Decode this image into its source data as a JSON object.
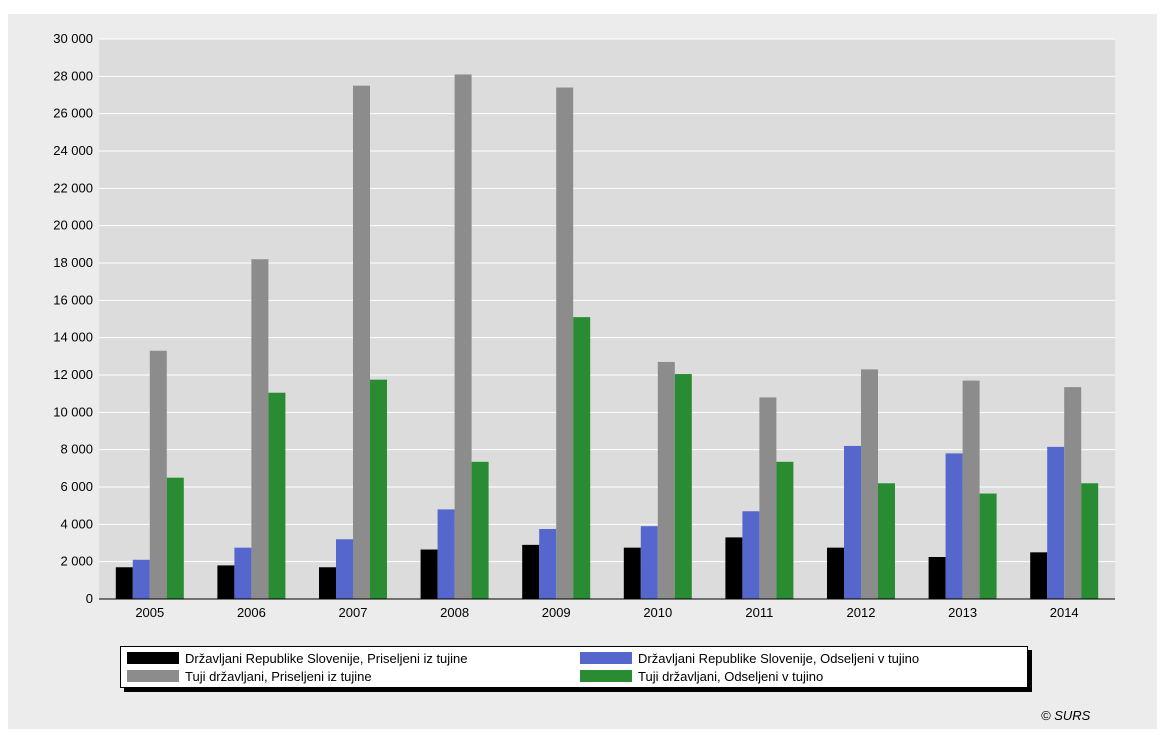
{
  "chart_data": {
    "type": "bar",
    "categories": [
      "2005",
      "2006",
      "2007",
      "2008",
      "2009",
      "2010",
      "2011",
      "2012",
      "2013",
      "2014"
    ],
    "series": [
      {
        "name": "Državljani Republike Slovenije, Priseljeni iz tujine",
        "color": "#000000",
        "values": [
          1700,
          1800,
          1700,
          2650,
          2900,
          2750,
          3300,
          2750,
          2250,
          2500
        ]
      },
      {
        "name": "Državljani Republike Slovenije, Odseljeni v tujino",
        "color": "#5566cc",
        "values": [
          2100,
          2750,
          3200,
          4800,
          3750,
          3900,
          4700,
          8200,
          7800,
          8150
        ]
      },
      {
        "name": "Tuji državljani, Priseljeni iz tujine",
        "color": "#8c8c8c",
        "values": [
          13300,
          18200,
          27500,
          28100,
          27400,
          12700,
          10800,
          12300,
          11700,
          11350
        ]
      },
      {
        "name": "Tuji državljani, Odseljeni v tujino",
        "color": "#2a8c32",
        "values": [
          6500,
          11050,
          11750,
          7350,
          15100,
          12050,
          7350,
          6200,
          5650,
          6200
        ]
      }
    ],
    "y_ticks": [
      "0",
      "2 000",
      "4 000",
      "6 000",
      "8 000",
      "10 000",
      "12 000",
      "14 000",
      "16 000",
      "18 000",
      "20 000",
      "22 000",
      "24 000",
      "26 000",
      "28 000",
      "30 000"
    ],
    "ylim": [
      0,
      30000
    ],
    "grid": true,
    "legend_position": "bottom"
  },
  "copyright": "© SURS"
}
